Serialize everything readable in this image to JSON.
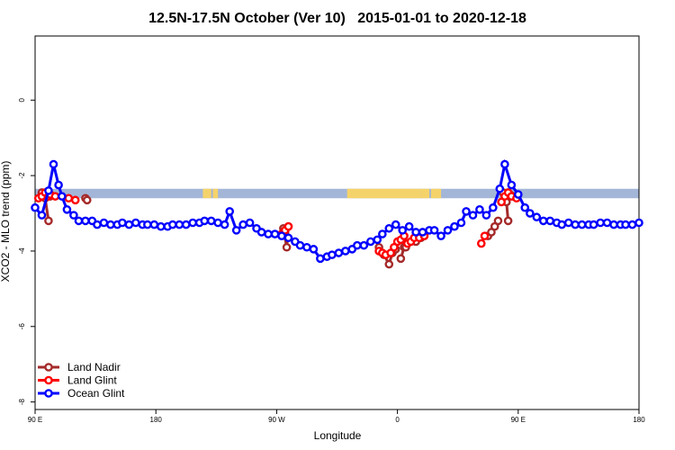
{
  "chart_data": {
    "type": "line",
    "title": "12.5N-17.5N October (Ver 10)   2015-01-01 to 2020-12-18",
    "xlabel": "Longitude",
    "ylabel": "XCO2 - MLO trend (ppm)",
    "xlim": [
      -180,
      180
    ],
    "ylim": [
      -8.2,
      1.7
    ],
    "x_ticks": [
      {
        "value": -180,
        "label": "90 E"
      },
      {
        "value": -108,
        "label": "180"
      },
      {
        "value": -36,
        "label": "90 W"
      },
      {
        "value": 36,
        "label": "0"
      },
      {
        "value": 108,
        "label": "90 E"
      },
      {
        "value": 180,
        "label": "180"
      }
    ],
    "y_ticks": [
      {
        "value": 0,
        "label": "0"
      },
      {
        "value": -2,
        "label": "-2"
      },
      {
        "value": -4,
        "label": "-4"
      },
      {
        "value": -6,
        "label": "-6"
      },
      {
        "value": -8,
        "label": "-8"
      }
    ],
    "grid": false,
    "legend_position": "bottom-left",
    "band": {
      "y_top": -2.35,
      "y_bottom": -2.6,
      "color": "#a3b6d8",
      "land_color": "#f5d36b"
    },
    "land_segments": [
      [
        -80,
        -77
      ],
      [
        -77,
        -75
      ],
      [
        -74,
        -71
      ],
      [
        6,
        50
      ],
      [
        50,
        55
      ],
      [
        56,
        62
      ]
    ],
    "series": [
      {
        "name": "Land Nadir",
        "color": "#a52a2a",
        "segments": [
          {
            "x": [
              -176,
              -174,
              -172
            ],
            "y": [
              -2.45,
              -2.6,
              -3.2
            ]
          },
          {
            "x": [
              -173,
              -171
            ],
            "y": [
              -2.55,
              -2.55
            ]
          },
          {
            "x": [
              -150,
              -149
            ],
            "y": [
              -2.6,
              -2.65
            ]
          },
          {
            "x": [
              -32,
              -30,
              -29
            ],
            "y": [
              -3.4,
              -3.9,
              -3.35
            ]
          },
          {
            "x": [
              25,
              28,
              31,
              33,
              35
            ],
            "y": [
              -3.9,
              -4.1,
              -4.35,
              -4.05,
              -3.95
            ]
          },
          {
            "x": [
              38,
              40,
              41
            ],
            "y": [
              -4.2,
              -3.9,
              -3.9
            ]
          },
          {
            "x": [
              47,
              50
            ],
            "y": [
              -3.75,
              -3.65
            ]
          },
          {
            "x": [
              90,
              92,
              94,
              96
            ],
            "y": [
              -3.6,
              -3.5,
              -3.35,
              -3.2
            ]
          },
          {
            "x": [
              99,
              101,
              102
            ],
            "y": [
              -2.45,
              -2.7,
              -3.2
            ]
          },
          {
            "x": [
              103,
              105
            ],
            "y": [
              -2.5,
              -2.55
            ]
          }
        ]
      },
      {
        "name": "Land Glint",
        "color": "#ff0000",
        "segments": [
          {
            "x": [
              -178,
              -176,
              -174,
              -172
            ],
            "y": [
              -2.6,
              -2.55,
              -2.45,
              -2.55
            ]
          },
          {
            "x": [
              -171,
              -168,
              -160,
              -156
            ],
            "y": [
              -2.5,
              -2.55,
              -2.6,
              -2.65
            ]
          },
          {
            "x": [
              -33,
              -31,
              -29
            ],
            "y": [
              -3.55,
              -3.45,
              -3.35
            ]
          },
          {
            "x": [
              25,
              27,
              29,
              32,
              34,
              36,
              38,
              40,
              42,
              44,
              46,
              49,
              52
            ],
            "y": [
              -4.0,
              -4.05,
              -4.1,
              -4.05,
              -3.9,
              -3.75,
              -3.7,
              -3.6,
              -3.8,
              -3.75,
              -3.65,
              -3.65,
              -3.6
            ]
          },
          {
            "x": [
              86,
              88
            ],
            "y": [
              -3.8,
              -3.6
            ]
          },
          {
            "x": [
              98,
              100,
              102,
              104,
              107
            ],
            "y": [
              -2.7,
              -2.55,
              -2.45,
              -2.55,
              -2.6
            ]
          }
        ]
      },
      {
        "name": "Ocean Glint",
        "color": "#0000ff",
        "segments": [
          {
            "x": [
              -180,
              -176,
              -172,
              -169,
              -166,
              -164,
              -161,
              -157,
              -154,
              -150,
              -146,
              -143,
              -139,
              -135,
              -131,
              -128,
              -124,
              -120,
              -116,
              -113,
              -109,
              -105,
              -101,
              -98,
              -94,
              -90,
              -86,
              -82,
              -79,
              -75,
              -71,
              -67,
              -64,
              -60,
              -56,
              -52,
              -48,
              -45,
              -41,
              -37,
              -33,
              -29,
              -25,
              -22,
              -18,
              -14,
              -10,
              -6,
              -3,
              1,
              5,
              9,
              12,
              16,
              20,
              24,
              27,
              31,
              35,
              39,
              43,
              47,
              51,
              55,
              58,
              62,
              66,
              70,
              74,
              77,
              81,
              85,
              89,
              93,
              97,
              100,
              104,
              108,
              112,
              115,
              119,
              123,
              127,
              131,
              134,
              138,
              142,
              146,
              150,
              153,
              157,
              161,
              165,
              169,
              172,
              176,
              180
            ],
            "y": [
              -2.85,
              -3.05,
              -2.4,
              -1.7,
              -2.25,
              -2.55,
              -2.9,
              -3.05,
              -3.2,
              -3.2,
              -3.2,
              -3.3,
              -3.25,
              -3.3,
              -3.3,
              -3.25,
              -3.3,
              -3.25,
              -3.3,
              -3.3,
              -3.3,
              -3.35,
              -3.35,
              -3.3,
              -3.3,
              -3.3,
              -3.25,
              -3.25,
              -3.2,
              -3.2,
              -3.25,
              -3.3,
              -2.95,
              -3.45,
              -3.3,
              -3.25,
              -3.4,
              -3.5,
              -3.55,
              -3.55,
              -3.6,
              -3.65,
              -3.75,
              -3.85,
              -3.9,
              -3.95,
              -4.2,
              -4.15,
              -4.1,
              -4.05,
              -4.0,
              -3.95,
              -3.85,
              -3.85,
              -3.75,
              -3.7,
              -3.55,
              -3.4,
              -3.3,
              -3.45,
              -3.35,
              -3.5,
              -3.5,
              -3.45,
              -3.45,
              -3.6,
              -3.45,
              -3.35,
              -3.25,
              -2.95,
              -3.05,
              -2.9,
              -3.05,
              -2.85,
              -2.35,
              -1.7,
              -2.25,
              -2.5,
              -2.85,
              -3.0,
              -3.1,
              -3.2,
              -3.2,
              -3.25,
              -3.3,
              -3.25,
              -3.3,
              -3.3,
              -3.3,
              -3.3,
              -3.25,
              -3.25,
              -3.3,
              -3.3,
              -3.3,
              -3.3,
              -3.25
            ]
          }
        ]
      }
    ]
  }
}
